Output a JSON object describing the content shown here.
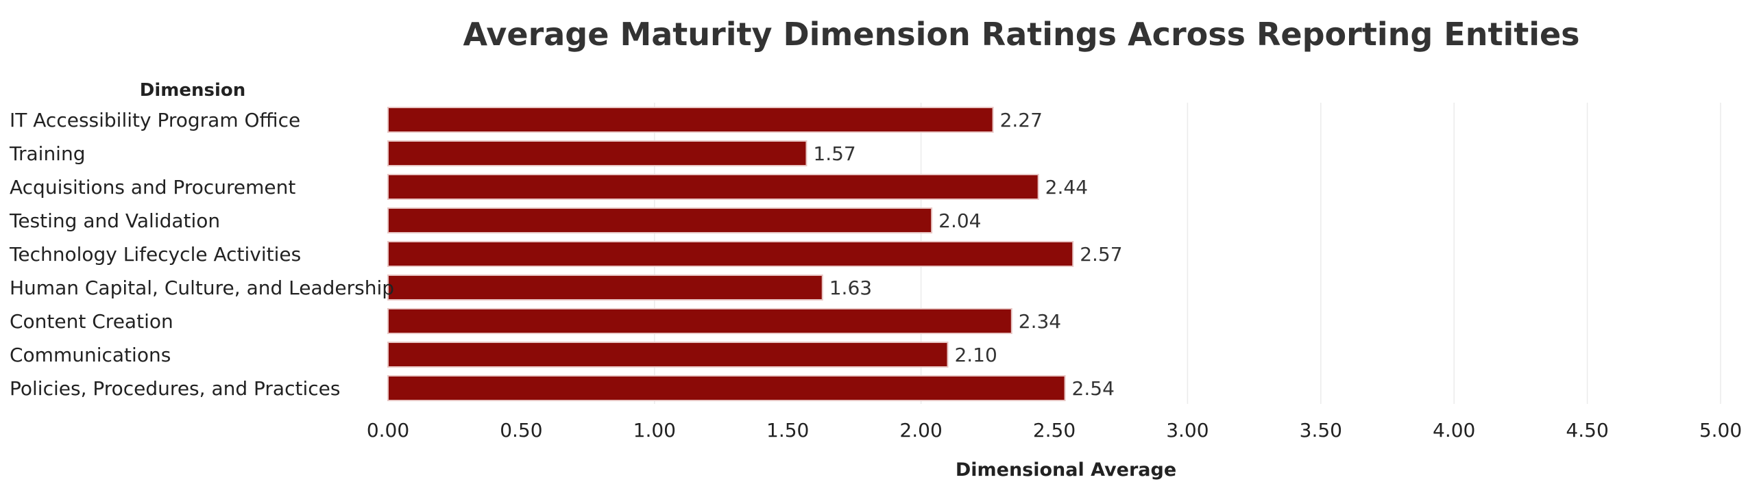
{
  "chart_data": {
    "type": "bar",
    "orientation": "horizontal",
    "title": "Average Maturity Dimension Ratings Across Reporting Entities",
    "xlabel": "Dimensional Average",
    "ylabel": "Dimension",
    "categories": [
      "IT Accessibility Program Office",
      "Training",
      "Acquisitions and Procurement",
      "Testing and Validation",
      "Technology Lifecycle Activities",
      "Human Capital, Culture, and Leadership",
      "Content Creation",
      "Communications",
      "Policies, Procedures, and Practices"
    ],
    "values": [
      2.27,
      1.57,
      2.44,
      2.04,
      2.57,
      1.63,
      2.34,
      2.1,
      2.54
    ],
    "value_labels": [
      "2.27",
      "1.57",
      "2.44",
      "2.04",
      "2.57",
      "1.63",
      "2.34",
      "2.10",
      "2.54"
    ],
    "xlim": [
      0,
      5
    ],
    "xticks": [
      0,
      0.5,
      1,
      1.5,
      2,
      2.5,
      3,
      3.5,
      4,
      4.5,
      5
    ],
    "xtick_labels": [
      "0.00",
      "0.50",
      "1.00",
      "1.50",
      "2.00",
      "2.50",
      "3.00",
      "3.50",
      "4.00",
      "4.50",
      "5.00"
    ],
    "grid": true,
    "legend": "none",
    "colors": {
      "bar": "#8B0A07",
      "bar_outline": "#E8C6C4",
      "grid": "#EBEBEB",
      "text": "#333333"
    }
  }
}
